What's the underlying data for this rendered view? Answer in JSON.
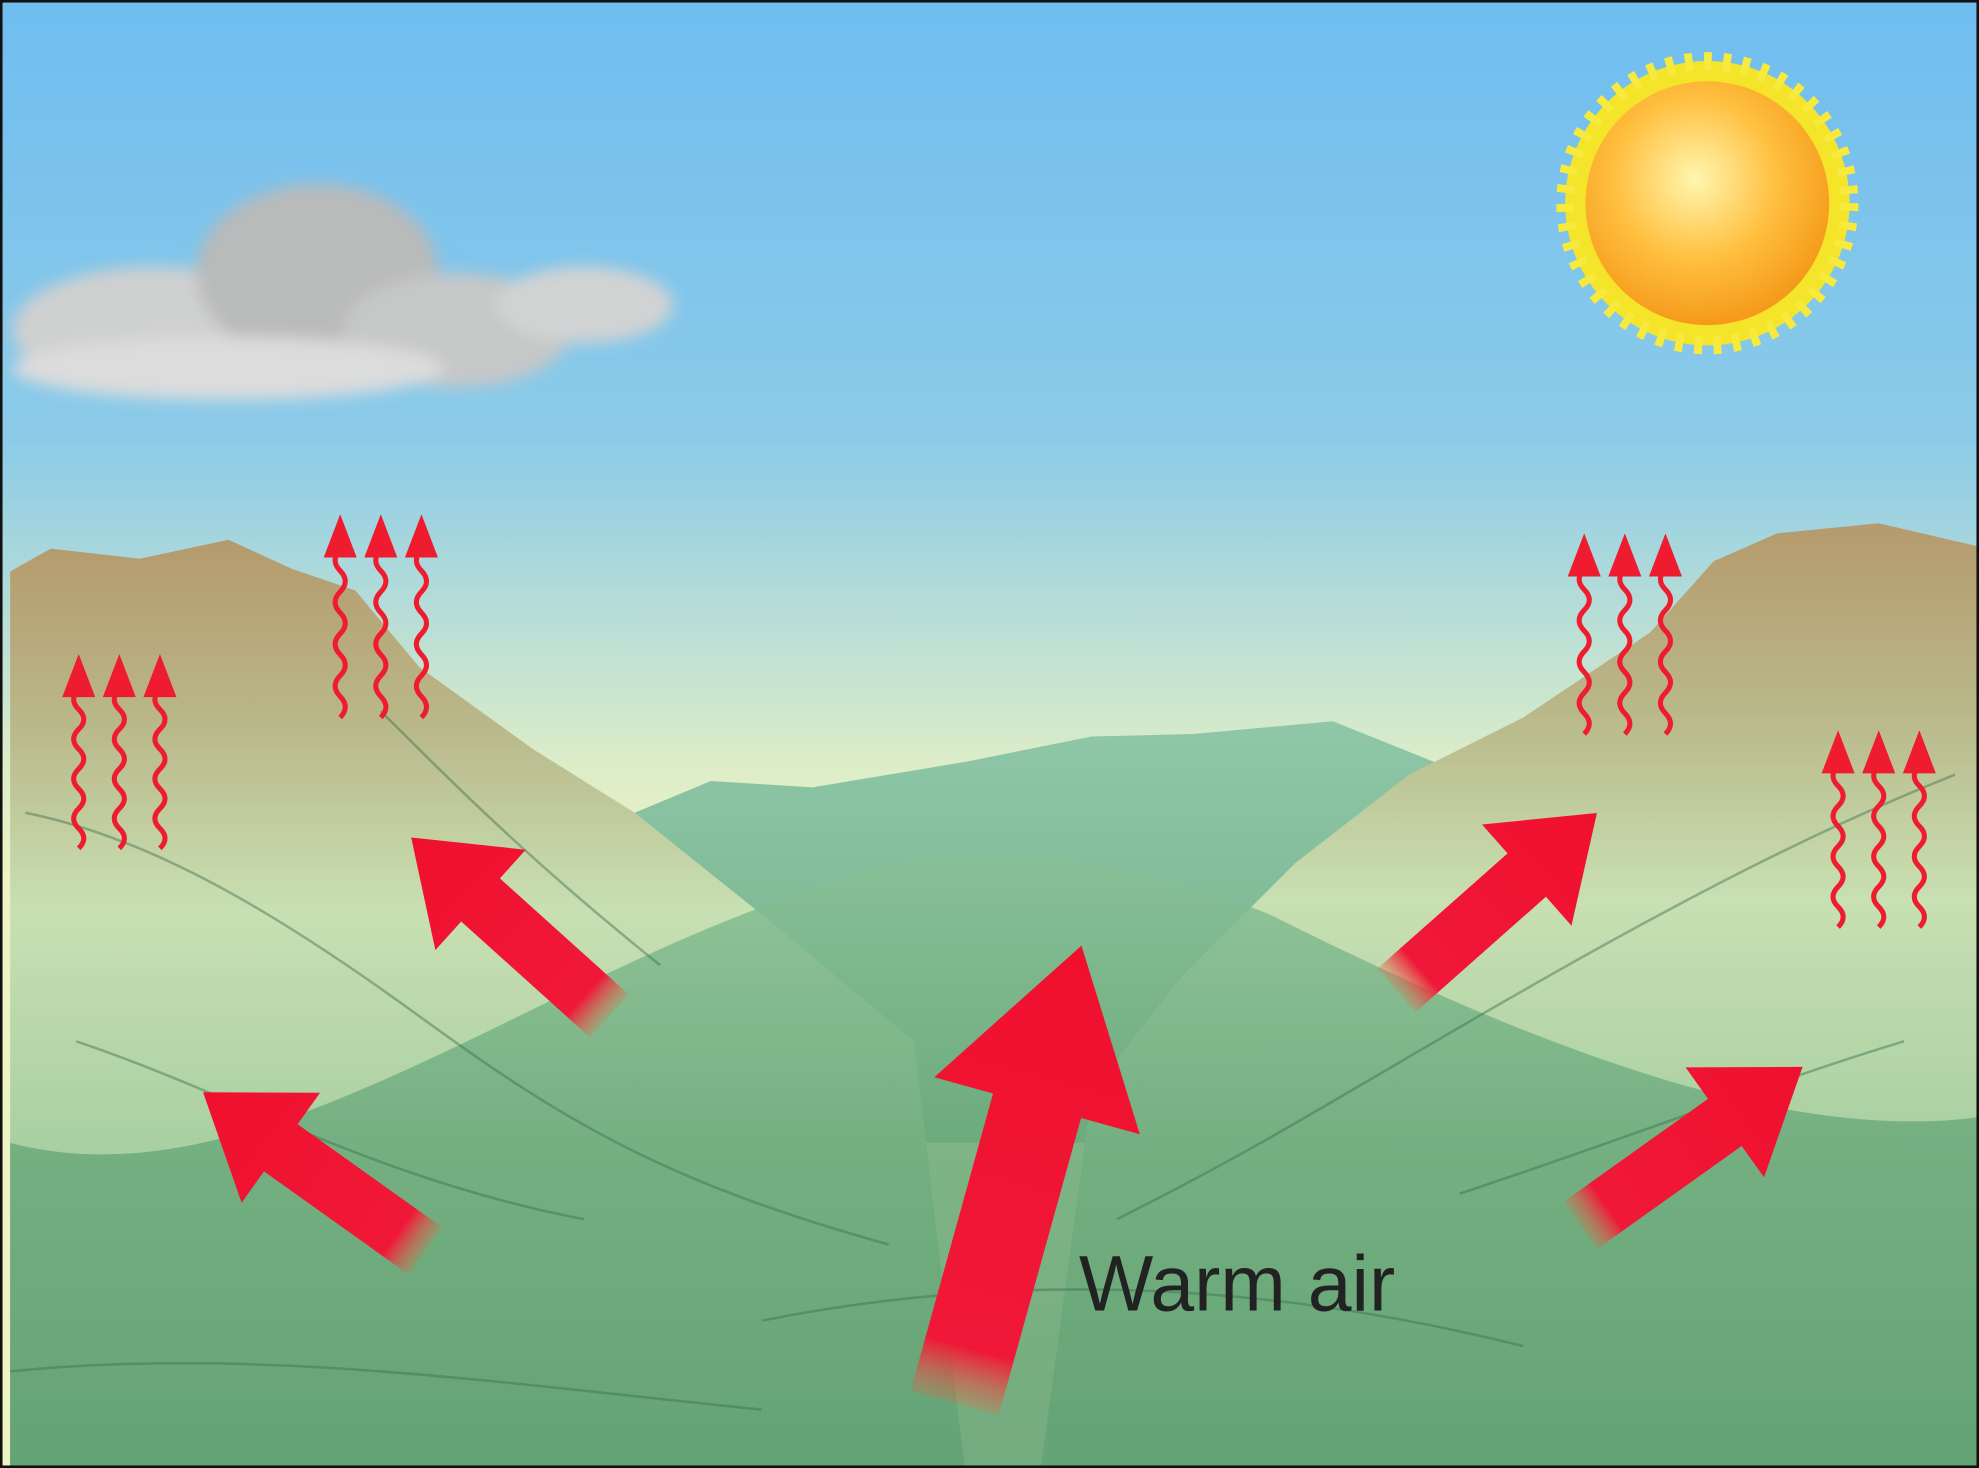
{
  "diagram": {
    "label": "Warm air"
  }
}
